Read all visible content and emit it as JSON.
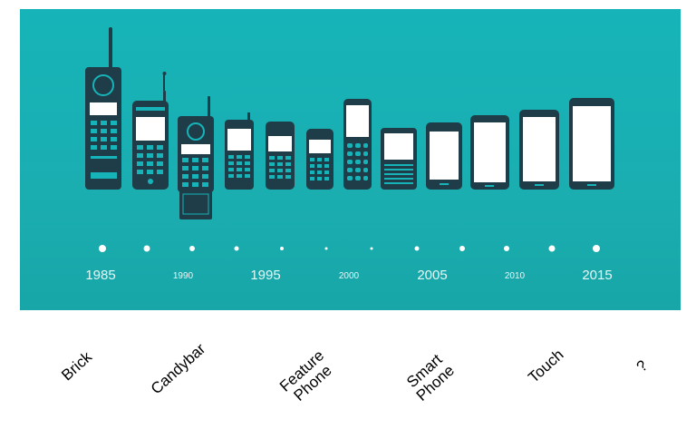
{
  "timeline": {
    "years": [
      {
        "label": "1985",
        "size": "big"
      },
      {
        "label": "1990",
        "size": "small"
      },
      {
        "label": "1995",
        "size": "big"
      },
      {
        "label": "2000",
        "size": "small"
      },
      {
        "label": "2005",
        "size": "big"
      },
      {
        "label": "2010",
        "size": "small"
      },
      {
        "label": "2015",
        "size": "big"
      }
    ]
  },
  "colors": {
    "panel": "#16b4b8",
    "phone": "#1e3d48",
    "screen": "#ffffff",
    "dot": "#ffffff"
  },
  "eras": [
    {
      "label": "Brick"
    },
    {
      "label": "Candybar"
    },
    {
      "label": "Feature\nPhone"
    },
    {
      "label": "Smart\nPhone"
    },
    {
      "label": "Touch"
    },
    {
      "label": "?"
    }
  ]
}
